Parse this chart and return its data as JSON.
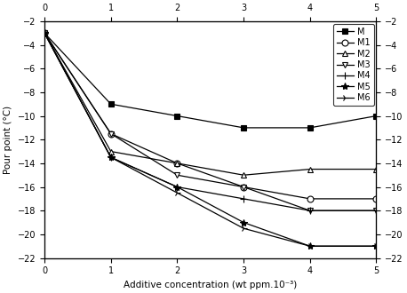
{
  "x": [
    0,
    1,
    2,
    3,
    4,
    5
  ],
  "series": [
    {
      "key": "M",
      "y": [
        -3,
        -9,
        -10,
        -11,
        -11,
        -10
      ],
      "marker": "s",
      "mfc": "black",
      "mec": "black",
      "ms": 5,
      "label": "M"
    },
    {
      "key": "M1",
      "y": [
        -3,
        -11.5,
        -14,
        -16,
        -17,
        -17
      ],
      "marker": "o",
      "mfc": "white",
      "mec": "black",
      "ms": 5,
      "label": "M1"
    },
    {
      "key": "M2",
      "y": [
        -3,
        -13,
        -14,
        -15,
        -14.5,
        -14.5
      ],
      "marker": "^",
      "mfc": "white",
      "mec": "black",
      "ms": 5,
      "label": "M2"
    },
    {
      "key": "M3",
      "y": [
        -3,
        -11.5,
        -15,
        -16,
        -18,
        -18
      ],
      "marker": "v",
      "mfc": "white",
      "mec": "black",
      "ms": 5,
      "label": "M3"
    },
    {
      "key": "M4",
      "y": [
        -3,
        -13.5,
        -16,
        -17,
        -18,
        -18
      ],
      "marker": "+",
      "mfc": "black",
      "mec": "black",
      "ms": 6,
      "label": "M4"
    },
    {
      "key": "M5",
      "y": [
        -3,
        -13.5,
        -16,
        -19,
        -21,
        -21
      ],
      "marker": "*",
      "mfc": "black",
      "mec": "black",
      "ms": 6,
      "label": "M5"
    },
    {
      "key": "M6",
      "y": [
        -3,
        -13.5,
        -16.5,
        -19.5,
        -21,
        -21
      ],
      "marker": "4",
      "mfc": "black",
      "mec": "black",
      "ms": 6,
      "label": "M6"
    }
  ],
  "xlim": [
    0,
    5
  ],
  "ylim": [
    -22,
    -2
  ],
  "yticks": [
    -22,
    -20,
    -18,
    -16,
    -14,
    -12,
    -10,
    -8,
    -6,
    -4,
    -2
  ],
  "xticks": [
    0,
    1,
    2,
    3,
    4,
    5
  ],
  "xlabel": "Additive concentration (wt ppm.10⁻³)",
  "ylabel": "Pour point (°C)",
  "figsize": [
    4.58,
    3.3
  ],
  "dpi": 100,
  "linewidth": 0.9,
  "legend_fontsize": 7,
  "axis_fontsize": 7.5,
  "tick_fontsize": 7
}
